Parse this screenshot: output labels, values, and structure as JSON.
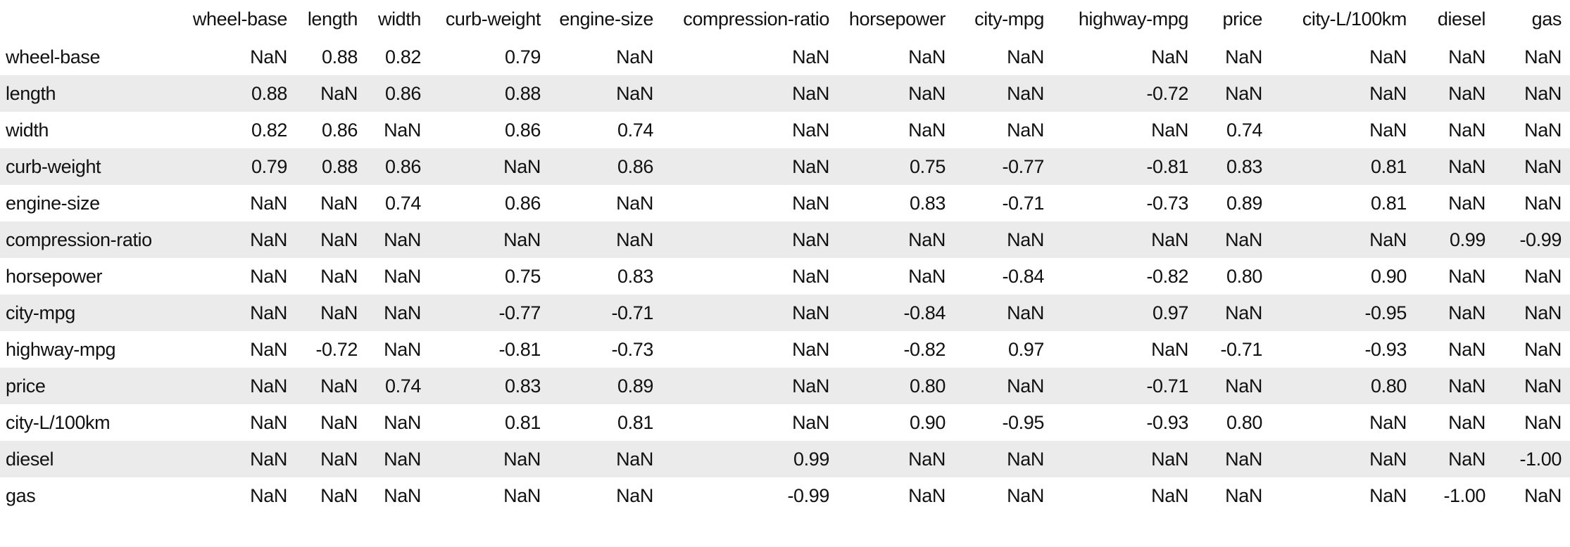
{
  "chart_data": {
    "type": "table",
    "title": "",
    "description": "Correlation matrix of automobile features; cells with NaN indicate suppressed/missing correlations",
    "corner_label": "",
    "columns": [
      "wheel-base",
      "length",
      "width",
      "curb-weight",
      "engine-size",
      "compression-ratio",
      "horsepower",
      "city-mpg",
      "highway-mpg",
      "price",
      "city-L/100km",
      "diesel",
      "gas"
    ],
    "rows": [
      {
        "label": "wheel-base",
        "values": [
          "NaN",
          "0.88",
          "0.82",
          "0.79",
          "NaN",
          "NaN",
          "NaN",
          "NaN",
          "NaN",
          "NaN",
          "NaN",
          "NaN",
          "NaN"
        ]
      },
      {
        "label": "length",
        "values": [
          "0.88",
          "NaN",
          "0.86",
          "0.88",
          "NaN",
          "NaN",
          "NaN",
          "NaN",
          "-0.72",
          "NaN",
          "NaN",
          "NaN",
          "NaN"
        ]
      },
      {
        "label": "width",
        "values": [
          "0.82",
          "0.86",
          "NaN",
          "0.86",
          "0.74",
          "NaN",
          "NaN",
          "NaN",
          "NaN",
          "0.74",
          "NaN",
          "NaN",
          "NaN"
        ]
      },
      {
        "label": "curb-weight",
        "values": [
          "0.79",
          "0.88",
          "0.86",
          "NaN",
          "0.86",
          "NaN",
          "0.75",
          "-0.77",
          "-0.81",
          "0.83",
          "0.81",
          "NaN",
          "NaN"
        ]
      },
      {
        "label": "engine-size",
        "values": [
          "NaN",
          "NaN",
          "0.74",
          "0.86",
          "NaN",
          "NaN",
          "0.83",
          "-0.71",
          "-0.73",
          "0.89",
          "0.81",
          "NaN",
          "NaN"
        ]
      },
      {
        "label": "compression-ratio",
        "values": [
          "NaN",
          "NaN",
          "NaN",
          "NaN",
          "NaN",
          "NaN",
          "NaN",
          "NaN",
          "NaN",
          "NaN",
          "NaN",
          "0.99",
          "-0.99"
        ]
      },
      {
        "label": "horsepower",
        "values": [
          "NaN",
          "NaN",
          "NaN",
          "0.75",
          "0.83",
          "NaN",
          "NaN",
          "-0.84",
          "-0.82",
          "0.80",
          "0.90",
          "NaN",
          "NaN"
        ]
      },
      {
        "label": "city-mpg",
        "values": [
          "NaN",
          "NaN",
          "NaN",
          "-0.77",
          "-0.71",
          "NaN",
          "-0.84",
          "NaN",
          "0.97",
          "NaN",
          "-0.95",
          "NaN",
          "NaN"
        ]
      },
      {
        "label": "highway-mpg",
        "values": [
          "NaN",
          "-0.72",
          "NaN",
          "-0.81",
          "-0.73",
          "NaN",
          "-0.82",
          "0.97",
          "NaN",
          "-0.71",
          "-0.93",
          "NaN",
          "NaN"
        ]
      },
      {
        "label": "price",
        "values": [
          "NaN",
          "NaN",
          "0.74",
          "0.83",
          "0.89",
          "NaN",
          "0.80",
          "NaN",
          "-0.71",
          "NaN",
          "0.80",
          "NaN",
          "NaN"
        ]
      },
      {
        "label": "city-L/100km",
        "values": [
          "NaN",
          "NaN",
          "NaN",
          "0.81",
          "0.81",
          "NaN",
          "0.90",
          "-0.95",
          "-0.93",
          "0.80",
          "NaN",
          "NaN",
          "NaN"
        ]
      },
      {
        "label": "diesel",
        "values": [
          "NaN",
          "NaN",
          "NaN",
          "NaN",
          "NaN",
          "0.99",
          "NaN",
          "NaN",
          "NaN",
          "NaN",
          "NaN",
          "NaN",
          "-1.00"
        ]
      },
      {
        "label": "gas",
        "values": [
          "NaN",
          "NaN",
          "NaN",
          "NaN",
          "NaN",
          "-0.99",
          "NaN",
          "NaN",
          "NaN",
          "NaN",
          "NaN",
          "-1.00",
          "NaN"
        ]
      }
    ]
  },
  "colors": {
    "background": "#ffffff",
    "stripe": "#ebebeb",
    "text": "#111111"
  }
}
